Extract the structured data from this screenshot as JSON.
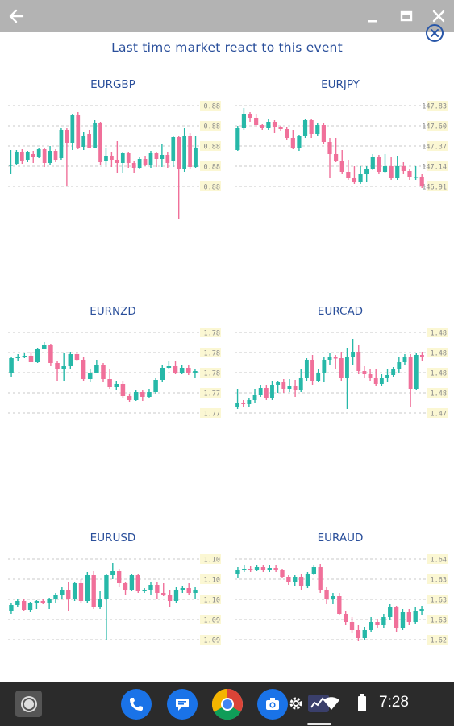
{
  "window": {
    "icons": {
      "back": "back-arrow-icon",
      "minimize": "minimize-icon",
      "maximize": "maximize-icon",
      "close": "close-icon"
    }
  },
  "page": {
    "headline": "Last time market react to this event",
    "close_icon": "close-circle-icon"
  },
  "colors": {
    "bull": "#26b8a8",
    "bear": "#f0709a",
    "title": "#2a4f9b",
    "grid": "#c9c9c9",
    "label_bg": "#fbf7d3",
    "label_text": "#8a8a8a"
  },
  "chart_data": [
    {
      "type": "candlestick",
      "title": "EURGBP",
      "y_ticks": [
        "0.88",
        "0.88",
        "0.88",
        "0.88",
        "0.88"
      ],
      "ylim": [
        0,
        100
      ],
      "candles": [
        [
          26,
          27,
          45,
          15
        ],
        [
          28,
          43,
          45,
          26
        ],
        [
          43,
          31,
          46,
          28
        ],
        [
          33,
          42,
          44,
          30
        ],
        [
          40,
          36,
          44,
          29
        ],
        [
          36,
          46,
          48,
          35
        ],
        [
          46,
          29,
          47,
          24
        ],
        [
          29,
          44,
          50,
          27
        ],
        [
          44,
          33,
          46,
          30
        ],
        [
          35,
          70,
          72,
          33
        ],
        [
          70,
          54,
          72,
          0
        ],
        [
          54,
          88,
          90,
          45
        ],
        [
          88,
          47,
          92,
          46
        ],
        [
          49,
          62,
          67,
          45
        ],
        [
          65,
          48,
          70,
          48
        ],
        [
          48,
          79,
          82,
          48
        ],
        [
          79,
          30,
          80,
          26
        ],
        [
          31,
          38,
          48,
          26
        ],
        [
          38,
          33,
          42,
          24
        ],
        [
          33,
          29,
          56,
          16
        ],
        [
          29,
          41,
          42,
          16
        ],
        [
          41,
          29,
          43,
          23
        ],
        [
          29,
          23,
          31,
          17
        ],
        [
          23,
          34,
          36,
          22
        ],
        [
          34,
          27,
          38,
          25
        ],
        [
          27,
          41,
          44,
          23
        ],
        [
          41,
          34,
          43,
          24
        ],
        [
          34,
          39,
          52,
          24
        ],
        [
          39,
          29,
          43,
          23
        ],
        [
          31,
          61,
          63,
          24
        ],
        [
          61,
          21,
          62,
          -40
        ],
        [
          21,
          63,
          72,
          18
        ],
        [
          63,
          24,
          66,
          22
        ],
        [
          24,
          48,
          63,
          23
        ]
      ]
    },
    {
      "type": "candlestick",
      "title": "EURJPY",
      "y_ticks": [
        "147.83",
        "147.60",
        "147.37",
        "147.14",
        "146.91"
      ],
      "ylim": [
        0,
        100
      ],
      "candles": [
        [
          45,
          72,
          75,
          44
        ],
        [
          72,
          90,
          97,
          70
        ],
        [
          90,
          85,
          92,
          80
        ],
        [
          85,
          76,
          90,
          73
        ],
        [
          76,
          72,
          77,
          70
        ],
        [
          72,
          80,
          84,
          70
        ],
        [
          80,
          73,
          82,
          66
        ],
        [
          73,
          71,
          75,
          69
        ],
        [
          71,
          60,
          74,
          58
        ],
        [
          60,
          48,
          70,
          46
        ],
        [
          48,
          62,
          64,
          44
        ],
        [
          62,
          82,
          84,
          60
        ],
        [
          82,
          65,
          84,
          60
        ],
        [
          65,
          76,
          79,
          63
        ],
        [
          76,
          55,
          78,
          53
        ],
        [
          55,
          40,
          60,
          10
        ],
        [
          40,
          32,
          60,
          30
        ],
        [
          32,
          18,
          45,
          15
        ],
        [
          18,
          10,
          33,
          8
        ],
        [
          10,
          5,
          25,
          3
        ],
        [
          5,
          15,
          25,
          3
        ],
        [
          15,
          22,
          25,
          5
        ],
        [
          22,
          36,
          40,
          20
        ],
        [
          36,
          18,
          39,
          15
        ],
        [
          18,
          25,
          40,
          16
        ],
        [
          25,
          10,
          36,
          8
        ],
        [
          10,
          25,
          38,
          8
        ],
        [
          25,
          19,
          30,
          15
        ],
        [
          19,
          11,
          22,
          8
        ],
        [
          11,
          12,
          25,
          8
        ],
        [
          12,
          0,
          15,
          -2
        ]
      ]
    },
    {
      "type": "candlestick",
      "title": "EURNZD",
      "y_ticks": [
        "1.78",
        "1.78",
        "1.78",
        "1.77",
        "1.77"
      ],
      "ylim": [
        0,
        100
      ],
      "candles": [
        [
          50,
          68,
          70,
          45
        ],
        [
          68,
          70,
          73,
          65
        ],
        [
          70,
          71,
          74,
          68
        ],
        [
          71,
          63,
          76,
          63
        ],
        [
          63,
          79,
          81,
          62
        ],
        [
          79,
          84,
          88,
          79
        ],
        [
          84,
          62,
          86,
          58
        ],
        [
          62,
          55,
          65,
          40
        ],
        [
          55,
          58,
          75,
          40
        ],
        [
          58,
          73,
          76,
          55
        ],
        [
          73,
          66,
          76,
          65
        ],
        [
          66,
          42,
          70,
          40
        ],
        [
          42,
          50,
          54,
          39
        ],
        [
          50,
          60,
          66,
          49
        ],
        [
          60,
          42,
          62,
          38
        ],
        [
          42,
          32,
          55,
          30
        ],
        [
          32,
          36,
          40,
          28
        ],
        [
          36,
          21,
          40,
          18
        ],
        [
          21,
          16,
          24,
          14
        ],
        [
          16,
          26,
          28,
          15
        ],
        [
          26,
          20,
          28,
          15
        ],
        [
          20,
          26,
          30,
          18
        ],
        [
          26,
          41,
          43,
          24
        ],
        [
          41,
          56,
          60,
          39
        ],
        [
          56,
          58,
          65,
          54
        ],
        [
          58,
          50,
          64,
          48
        ],
        [
          50,
          56,
          60,
          48
        ],
        [
          56,
          49,
          60,
          47
        ],
        [
          49,
          52,
          55,
          43
        ]
      ]
    },
    {
      "type": "candlestick",
      "title": "EURCAD",
      "y_ticks": [
        "1.48",
        "1.48",
        "1.48",
        "1.48",
        "1.47"
      ],
      "ylim": [
        0,
        100
      ],
      "candles": [
        [
          8,
          13,
          30,
          5
        ],
        [
          13,
          11,
          16,
          8
        ],
        [
          11,
          16,
          19,
          8
        ],
        [
          16,
          22,
          30,
          13
        ],
        [
          22,
          31,
          35,
          20
        ],
        [
          31,
          18,
          35,
          16
        ],
        [
          18,
          35,
          40,
          16
        ],
        [
          35,
          38,
          40,
          25
        ],
        [
          38,
          30,
          42,
          25
        ],
        [
          30,
          34,
          42,
          26
        ],
        [
          34,
          28,
          41,
          20
        ],
        [
          28,
          44,
          54,
          26
        ],
        [
          44,
          66,
          68,
          40
        ],
        [
          66,
          40,
          72,
          35
        ],
        [
          40,
          50,
          55,
          38
        ],
        [
          50,
          66,
          70,
          38
        ],
        [
          66,
          69,
          74,
          60
        ],
        [
          69,
          68,
          72,
          55
        ],
        [
          68,
          44,
          76,
          40
        ],
        [
          44,
          70,
          80,
          5
        ],
        [
          70,
          76,
          92,
          60
        ],
        [
          76,
          52,
          84,
          48
        ],
        [
          52,
          48,
          58,
          44
        ],
        [
          48,
          44,
          54,
          40
        ],
        [
          44,
          36,
          55,
          33
        ],
        [
          36,
          44,
          48,
          33
        ],
        [
          44,
          47,
          55,
          38
        ],
        [
          47,
          54,
          57,
          45
        ],
        [
          54,
          63,
          70,
          50
        ],
        [
          63,
          70,
          73,
          60
        ],
        [
          70,
          30,
          73,
          8
        ],
        [
          30,
          72,
          74,
          28
        ],
        [
          72,
          69,
          76,
          65
        ]
      ]
    },
    {
      "type": "candlestick",
      "title": "EURUSD",
      "y_ticks": [
        "1.10",
        "1.10",
        "1.10",
        "1.09",
        "1.09"
      ],
      "ylim": [
        0,
        100
      ],
      "candles": [
        [
          36,
          43,
          45,
          32
        ],
        [
          43,
          48,
          50,
          40
        ],
        [
          48,
          37,
          50,
          35
        ],
        [
          37,
          45,
          47,
          34
        ],
        [
          45,
          48,
          49,
          38
        ],
        [
          48,
          45,
          50,
          44
        ],
        [
          45,
          50,
          52,
          38
        ],
        [
          50,
          55,
          58,
          45
        ],
        [
          55,
          62,
          65,
          50
        ],
        [
          62,
          50,
          72,
          35
        ],
        [
          50,
          70,
          72,
          48
        ],
        [
          70,
          48,
          75,
          46
        ],
        [
          48,
          80,
          84,
          46
        ],
        [
          80,
          40,
          85,
          38
        ],
        [
          40,
          50,
          60,
          38
        ],
        [
          50,
          80,
          82,
          0
        ],
        [
          80,
          85,
          95,
          75
        ],
        [
          85,
          70,
          88,
          65
        ],
        [
          70,
          62,
          72,
          55
        ],
        [
          62,
          80,
          82,
          60
        ],
        [
          80,
          60,
          82,
          58
        ],
        [
          60,
          62,
          64,
          58
        ],
        [
          62,
          68,
          72,
          55
        ],
        [
          68,
          58,
          72,
          50
        ],
        [
          58,
          56,
          70,
          54
        ],
        [
          56,
          48,
          62,
          40
        ],
        [
          48,
          62,
          65,
          45
        ],
        [
          62,
          64,
          66,
          58
        ],
        [
          64,
          58,
          70,
          55
        ],
        [
          58,
          62,
          65,
          50
        ]
      ]
    },
    {
      "type": "candlestick",
      "title": "EURAUD",
      "y_ticks": [
        "1.64",
        "1.63",
        "1.63",
        "1.63",
        "1.62"
      ],
      "ylim": [
        0,
        100
      ],
      "candles": [
        [
          82,
          86,
          90,
          76
        ],
        [
          86,
          88,
          92,
          84
        ],
        [
          88,
          86,
          91,
          84
        ],
        [
          86,
          90,
          93,
          85
        ],
        [
          90,
          87,
          92,
          84
        ],
        [
          87,
          89,
          92,
          84
        ],
        [
          89,
          86,
          92,
          84
        ],
        [
          86,
          78,
          88,
          76
        ],
        [
          78,
          72,
          80,
          68
        ],
        [
          72,
          78,
          80,
          66
        ],
        [
          78,
          66,
          82,
          62
        ],
        [
          66,
          82,
          84,
          64
        ],
        [
          82,
          90,
          92,
          80
        ],
        [
          90,
          62,
          94,
          58
        ],
        [
          62,
          50,
          65,
          44
        ],
        [
          50,
          54,
          58,
          44
        ],
        [
          54,
          32,
          58,
          30
        ],
        [
          32,
          22,
          36,
          18
        ],
        [
          22,
          12,
          28,
          8
        ],
        [
          12,
          2,
          18,
          -2
        ],
        [
          2,
          12,
          16,
          0
        ],
        [
          12,
          22,
          28,
          10
        ],
        [
          22,
          18,
          26,
          14
        ],
        [
          18,
          28,
          32,
          14
        ],
        [
          28,
          40,
          44,
          24
        ],
        [
          40,
          14,
          42,
          10
        ],
        [
          14,
          34,
          38,
          12
        ],
        [
          34,
          22,
          38,
          18
        ],
        [
          22,
          36,
          40,
          20
        ],
        [
          36,
          38,
          42,
          30
        ]
      ]
    }
  ],
  "taskbar": {
    "launcher_icon": "launcher-icon",
    "apps": [
      {
        "name": "phone-app-icon"
      },
      {
        "name": "messages-app-icon"
      },
      {
        "name": "chrome-app-icon"
      },
      {
        "name": "camera-app-icon"
      },
      {
        "name": "settings-app-icon"
      },
      {
        "name": "market-app-icon"
      }
    ],
    "status": {
      "wifi": "wifi-icon",
      "battery": "battery-icon"
    },
    "clock": "7:28"
  }
}
